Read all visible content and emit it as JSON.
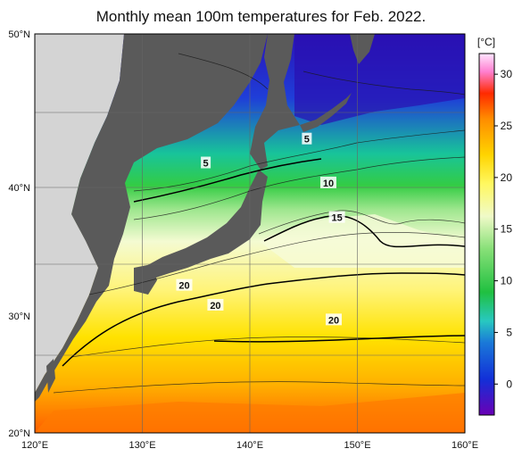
{
  "title": "Monthly mean 100m temperatures for Feb. 2022.",
  "map": {
    "lon_range": [
      120,
      160
    ],
    "lat_range": [
      20,
      50
    ],
    "x_ticks": [
      "120°E",
      "130°E",
      "140°E",
      "150°E",
      "160°E"
    ],
    "y_ticks": [
      "50°N",
      "40°N",
      "30°N",
      "20°N"
    ],
    "grid": true,
    "colors": {
      "land": "#5a5a5a",
      "outside_area": "#d4d4d4",
      "grid": "#666666"
    }
  },
  "colorbar": {
    "unit": "[°C]",
    "min": -3,
    "max": 32,
    "tick_labels": [
      "0",
      "5",
      "10",
      "15",
      "20",
      "25",
      "30"
    ],
    "colors": [
      "#6a00b5",
      "#1230d8",
      "#1a78d8",
      "#28c8c0",
      "#20c040",
      "#88e078",
      "#f0fac8",
      "#fff860",
      "#ffd400",
      "#ff8c00",
      "#ff2a00",
      "#ff7fd0",
      "#ffe6ff"
    ]
  },
  "contour_labels": [
    {
      "text": "5",
      "lon": 135.9,
      "lat": 40.3
    },
    {
      "text": "5",
      "lon": 145.3,
      "lat": 42.1
    },
    {
      "text": "10",
      "lon": 147.3,
      "lat": 38.8
    },
    {
      "text": "15",
      "lon": 148.1,
      "lat": 36.2
    },
    {
      "text": "20",
      "lon": 133.9,
      "lat": 31.1
    },
    {
      "text": "20",
      "lon": 136.8,
      "lat": 29.6
    },
    {
      "text": "20",
      "lon": 147.8,
      "lat": 28.5
    }
  ]
}
